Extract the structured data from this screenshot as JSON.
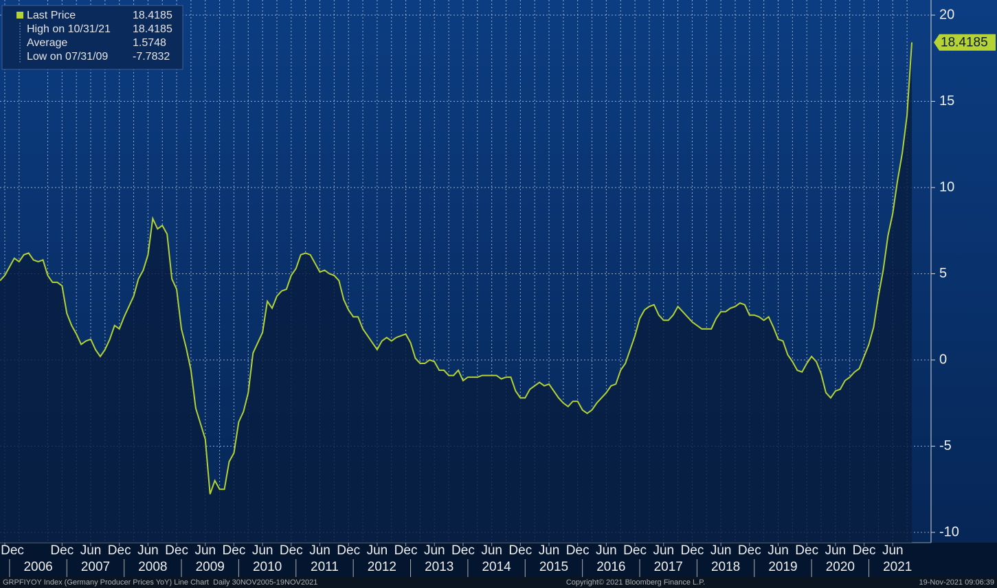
{
  "chart_data": {
    "type": "line",
    "footer_left": "GRPFIYOY Index (Germany Producer Prices YoY) Line Chart  Daily 30NOV2005-19NOV2021",
    "footer_center": "Copyright© 2021 Bloomberg Finance L.P.",
    "footer_right": "19-Nov-2021 09:06:39",
    "x": [
      "2005-11",
      "2005-12",
      "2006-01",
      "2006-02",
      "2006-03",
      "2006-04",
      "2006-05",
      "2006-06",
      "2006-07",
      "2006-08",
      "2006-09",
      "2006-10",
      "2006-11",
      "2006-12",
      "2007-01",
      "2007-02",
      "2007-03",
      "2007-04",
      "2007-05",
      "2007-06",
      "2007-07",
      "2007-08",
      "2007-09",
      "2007-10",
      "2007-11",
      "2007-12",
      "2008-01",
      "2008-02",
      "2008-03",
      "2008-04",
      "2008-05",
      "2008-06",
      "2008-07",
      "2008-08",
      "2008-09",
      "2008-10",
      "2008-11",
      "2008-12",
      "2009-01",
      "2009-02",
      "2009-03",
      "2009-04",
      "2009-05",
      "2009-06",
      "2009-07",
      "2009-08",
      "2009-09",
      "2009-10",
      "2009-11",
      "2009-12",
      "2010-01",
      "2010-02",
      "2010-03",
      "2010-04",
      "2010-05",
      "2010-06",
      "2010-07",
      "2010-08",
      "2010-09",
      "2010-10",
      "2010-11",
      "2010-12",
      "2011-01",
      "2011-02",
      "2011-03",
      "2011-04",
      "2011-05",
      "2011-06",
      "2011-07",
      "2011-08",
      "2011-09",
      "2011-10",
      "2011-11",
      "2011-12",
      "2012-01",
      "2012-02",
      "2012-03",
      "2012-04",
      "2012-05",
      "2012-06",
      "2012-07",
      "2012-08",
      "2012-09",
      "2012-10",
      "2012-11",
      "2012-12",
      "2013-01",
      "2013-02",
      "2013-03",
      "2013-04",
      "2013-05",
      "2013-06",
      "2013-07",
      "2013-08",
      "2013-09",
      "2013-10",
      "2013-11",
      "2013-12",
      "2014-01",
      "2014-02",
      "2014-03",
      "2014-04",
      "2014-05",
      "2014-06",
      "2014-07",
      "2014-08",
      "2014-09",
      "2014-10",
      "2014-11",
      "2014-12",
      "2015-01",
      "2015-02",
      "2015-03",
      "2015-04",
      "2015-05",
      "2015-06",
      "2015-07",
      "2015-08",
      "2015-09",
      "2015-10",
      "2015-11",
      "2015-12",
      "2016-01",
      "2016-02",
      "2016-03",
      "2016-04",
      "2016-05",
      "2016-06",
      "2016-07",
      "2016-08",
      "2016-09",
      "2016-10",
      "2016-11",
      "2016-12",
      "2017-01",
      "2017-02",
      "2017-03",
      "2017-04",
      "2017-05",
      "2017-06",
      "2017-07",
      "2017-08",
      "2017-09",
      "2017-10",
      "2017-11",
      "2017-12",
      "2018-01",
      "2018-02",
      "2018-03",
      "2018-04",
      "2018-05",
      "2018-06",
      "2018-07",
      "2018-08",
      "2018-09",
      "2018-10",
      "2018-11",
      "2018-12",
      "2019-01",
      "2019-02",
      "2019-03",
      "2019-04",
      "2019-05",
      "2019-06",
      "2019-07",
      "2019-08",
      "2019-09",
      "2019-10",
      "2019-11",
      "2019-12",
      "2020-01",
      "2020-02",
      "2020-03",
      "2020-04",
      "2020-05",
      "2020-06",
      "2020-07",
      "2020-08",
      "2020-09",
      "2020-10",
      "2020-11",
      "2020-12",
      "2021-01",
      "2021-02",
      "2021-03",
      "2021-04",
      "2021-05",
      "2021-06",
      "2021-07",
      "2021-08",
      "2021-09",
      "2021-10"
    ],
    "series": [
      {
        "name": "Last Price",
        "color": "#b5d334",
        "values": [
          4.6,
          4.9,
          5.4,
          5.9,
          5.7,
          6.1,
          6.2,
          5.8,
          5.7,
          5.8,
          4.9,
          4.5,
          4.5,
          4.3,
          2.7,
          2.0,
          1.5,
          0.9,
          1.1,
          1.2,
          0.6,
          0.2,
          0.6,
          1.2,
          2.0,
          1.8,
          2.5,
          3.1,
          3.7,
          4.7,
          5.2,
          6.1,
          8.2,
          7.6,
          7.8,
          7.3,
          4.7,
          4.1,
          1.8,
          0.7,
          -0.6,
          -2.8,
          -3.7,
          -4.6,
          -7.7832,
          -7.0,
          -7.5,
          -7.5,
          -5.9,
          -5.4,
          -3.6,
          -3.0,
          -1.9,
          0.4,
          1.0,
          1.6,
          3.4,
          3.0,
          3.7,
          4.0,
          4.1,
          4.9,
          5.3,
          6.1,
          6.2,
          6.1,
          5.6,
          5.1,
          5.2,
          5.0,
          4.9,
          4.6,
          3.5,
          2.9,
          2.5,
          2.5,
          1.8,
          1.4,
          1.0,
          0.6,
          1.1,
          1.3,
          1.1,
          1.3,
          1.4,
          1.5,
          1.0,
          0.1,
          -0.2,
          -0.2,
          0.0,
          -0.1,
          -0.6,
          -0.6,
          -0.9,
          -0.9,
          -0.6,
          -1.2,
          -1.0,
          -1.0,
          -1.0,
          -0.9,
          -0.9,
          -0.9,
          -0.9,
          -1.1,
          -1.0,
          -1.0,
          -1.8,
          -2.2,
          -2.2,
          -1.7,
          -1.5,
          -1.3,
          -1.5,
          -1.4,
          -1.8,
          -2.2,
          -2.5,
          -2.7,
          -2.4,
          -2.4,
          -2.9,
          -3.1,
          -2.9,
          -2.5,
          -2.2,
          -1.9,
          -1.5,
          -1.4,
          -0.6,
          -0.2,
          0.6,
          1.4,
          2.4,
          2.9,
          3.1,
          3.2,
          2.6,
          2.3,
          2.3,
          2.6,
          3.1,
          2.8,
          2.5,
          2.2,
          2.0,
          1.8,
          1.8,
          1.8,
          2.4,
          2.8,
          2.8,
          3.0,
          3.1,
          3.3,
          3.2,
          2.6,
          2.6,
          2.5,
          2.3,
          2.5,
          1.9,
          1.2,
          1.1,
          0.3,
          -0.1,
          -0.6,
          -0.7,
          -0.2,
          0.2,
          -0.1,
          -0.8,
          -1.9,
          -2.2,
          -1.8,
          -1.7,
          -1.2,
          -1.0,
          -0.7,
          -0.5,
          0.2,
          0.9,
          1.9,
          3.7,
          5.2,
          7.2,
          8.5,
          10.4,
          12.0,
          14.2,
          18.4185
        ]
      }
    ],
    "stats": [
      {
        "label": "High on 10/31/21",
        "value": 18.4185
      },
      {
        "label": "Average",
        "value": 1.5748
      },
      {
        "label": "Low on 07/31/09",
        "value": -7.7832
      }
    ],
    "xlim": [
      "2005-11",
      "2021-11"
    ],
    "xticks": [
      {
        "value": "2005-12",
        "label": "Dec"
      },
      {
        "value": "2006-12",
        "label": "Dec"
      },
      {
        "value": "2007-06",
        "label": "Jun"
      },
      {
        "value": "2007-12",
        "label": "Dec"
      },
      {
        "value": "2008-06",
        "label": "Jun"
      },
      {
        "value": "2008-12",
        "label": "Dec"
      },
      {
        "value": "2009-06",
        "label": "Jun"
      },
      {
        "value": "2009-12",
        "label": "Dec"
      },
      {
        "value": "2010-06",
        "label": "Jun"
      },
      {
        "value": "2010-12",
        "label": "Dec"
      },
      {
        "value": "2011-06",
        "label": "Jun"
      },
      {
        "value": "2011-12",
        "label": "Dec"
      },
      {
        "value": "2012-06",
        "label": "Jun"
      },
      {
        "value": "2012-12",
        "label": "Dec"
      },
      {
        "value": "2013-06",
        "label": "Jun"
      },
      {
        "value": "2013-12",
        "label": "Dec"
      },
      {
        "value": "2014-06",
        "label": "Jun"
      },
      {
        "value": "2014-12",
        "label": "Dec"
      },
      {
        "value": "2015-06",
        "label": "Jun"
      },
      {
        "value": "2015-12",
        "label": "Dec"
      },
      {
        "value": "2016-06",
        "label": "Jun"
      },
      {
        "value": "2016-12",
        "label": "Dec"
      },
      {
        "value": "2017-06",
        "label": "Jun"
      },
      {
        "value": "2017-12",
        "label": "Dec"
      },
      {
        "value": "2018-06",
        "label": "Jun"
      },
      {
        "value": "2018-12",
        "label": "Dec"
      },
      {
        "value": "2019-06",
        "label": "Jun"
      },
      {
        "value": "2019-12",
        "label": "Dec"
      },
      {
        "value": "2020-06",
        "label": "Jun"
      },
      {
        "value": "2020-12",
        "label": "Dec"
      },
      {
        "value": "2021-06",
        "label": "Jun"
      }
    ],
    "years": [
      "2006",
      "2007",
      "2008",
      "2009",
      "2010",
      "2011",
      "2012",
      "2013",
      "2014",
      "2015",
      "2016",
      "2017",
      "2018",
      "2019",
      "2020",
      "2021"
    ],
    "ylim": [
      -10,
      20
    ],
    "yticks": [
      -10,
      -5,
      0,
      5,
      10,
      15,
      20
    ],
    "grid": true
  }
}
